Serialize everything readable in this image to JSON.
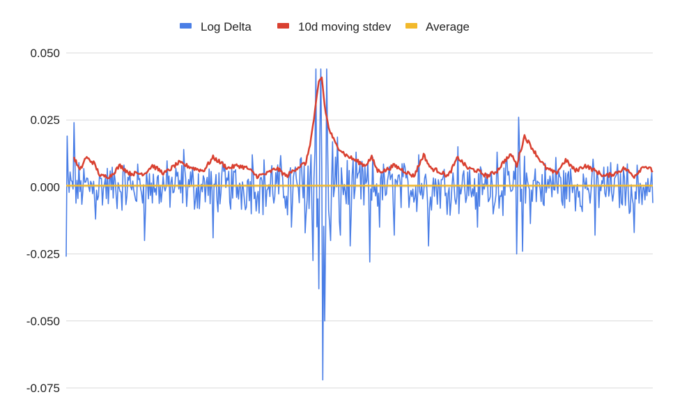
{
  "chart_data": {
    "type": "line",
    "title": "",
    "xlabel": "",
    "ylabel": "",
    "ylim": [
      -0.075,
      0.05
    ],
    "yticks": [
      "0.050",
      "0.025",
      "0.000",
      "-0.025",
      "-0.050",
      "-0.075"
    ],
    "ytick_values": [
      0.05,
      0.025,
      0.0,
      -0.025,
      -0.05,
      -0.075
    ],
    "grid": true,
    "legend_position": "top-center",
    "n_points": 600,
    "series": [
      {
        "name": "Log Delta",
        "color": "#4a7ee6",
        "description": "daily log change, noisy around zero",
        "anchors": [
          [
            0,
            -0.026
          ],
          [
            1,
            0.019
          ],
          [
            8,
            0.024
          ],
          [
            30,
            -0.012
          ],
          [
            80,
            -0.02
          ],
          [
            120,
            0.014
          ],
          [
            150,
            -0.019
          ],
          [
            190,
            0.012
          ],
          [
            230,
            -0.015
          ],
          [
            260,
            0.013
          ],
          [
            290,
            0.008
          ],
          [
            310,
            -0.006
          ],
          [
            320,
            -0.015
          ],
          [
            335,
            -0.018
          ],
          [
            250,
            0.012
          ],
          [
            255,
            0.044
          ],
          [
            258,
            -0.038
          ],
          [
            260,
            0.044
          ],
          [
            262,
            -0.072
          ],
          [
            264,
            -0.05
          ],
          [
            266,
            0.044
          ],
          [
            270,
            -0.02
          ],
          [
            280,
            -0.018
          ],
          [
            290,
            -0.022
          ],
          [
            310,
            -0.028
          ],
          [
            360,
            0.012
          ],
          [
            370,
            -0.022
          ],
          [
            400,
            0.015
          ],
          [
            420,
            -0.015
          ],
          [
            440,
            0.013
          ],
          [
            462,
            0.026
          ],
          [
            460,
            -0.025
          ],
          [
            466,
            -0.024
          ],
          [
            500,
            0.011
          ],
          [
            540,
            -0.018
          ],
          [
            580,
            -0.017
          ],
          [
            599,
            -0.006
          ]
        ]
      },
      {
        "name": "10d moving stdev",
        "color": "#d94030",
        "description": "10-day moving standard deviation",
        "anchors": [
          [
            8,
            0.011
          ],
          [
            14,
            0.006
          ],
          [
            20,
            0.011
          ],
          [
            28,
            0.009
          ],
          [
            35,
            0.004
          ],
          [
            45,
            0.004
          ],
          [
            55,
            0.008
          ],
          [
            65,
            0.005
          ],
          [
            80,
            0.005
          ],
          [
            88,
            0.008
          ],
          [
            100,
            0.005
          ],
          [
            115,
            0.009
          ],
          [
            130,
            0.007
          ],
          [
            140,
            0.006
          ],
          [
            150,
            0.011
          ],
          [
            158,
            0.009
          ],
          [
            165,
            0.007
          ],
          [
            175,
            0.008
          ],
          [
            185,
            0.007
          ],
          [
            195,
            0.004
          ],
          [
            205,
            0.005
          ],
          [
            215,
            0.007
          ],
          [
            225,
            0.004
          ],
          [
            235,
            0.007
          ],
          [
            245,
            0.009
          ],
          [
            250,
            0.018
          ],
          [
            254,
            0.028
          ],
          [
            258,
            0.039
          ],
          [
            261,
            0.041
          ],
          [
            264,
            0.03
          ],
          [
            268,
            0.022
          ],
          [
            275,
            0.016
          ],
          [
            285,
            0.012
          ],
          [
            295,
            0.01
          ],
          [
            305,
            0.008
          ],
          [
            312,
            0.011
          ],
          [
            318,
            0.006
          ],
          [
            325,
            0.006
          ],
          [
            335,
            0.008
          ],
          [
            345,
            0.006
          ],
          [
            355,
            0.004
          ],
          [
            365,
            0.012
          ],
          [
            372,
            0.007
          ],
          [
            380,
            0.006
          ],
          [
            390,
            0.004
          ],
          [
            400,
            0.011
          ],
          [
            410,
            0.007
          ],
          [
            420,
            0.006
          ],
          [
            430,
            0.004
          ],
          [
            440,
            0.006
          ],
          [
            448,
            0.01
          ],
          [
            455,
            0.012
          ],
          [
            460,
            0.008
          ],
          [
            468,
            0.019
          ],
          [
            475,
            0.015
          ],
          [
            482,
            0.011
          ],
          [
            490,
            0.007
          ],
          [
            500,
            0.005
          ],
          [
            510,
            0.01
          ],
          [
            520,
            0.006
          ],
          [
            530,
            0.008
          ],
          [
            540,
            0.006
          ],
          [
            550,
            0.004
          ],
          [
            560,
            0.005
          ],
          [
            570,
            0.007
          ],
          [
            580,
            0.004
          ],
          [
            590,
            0.008
          ],
          [
            599,
            0.006
          ]
        ]
      },
      {
        "name": "Average",
        "color": "#f2b92c",
        "value": 0.0005
      }
    ]
  }
}
